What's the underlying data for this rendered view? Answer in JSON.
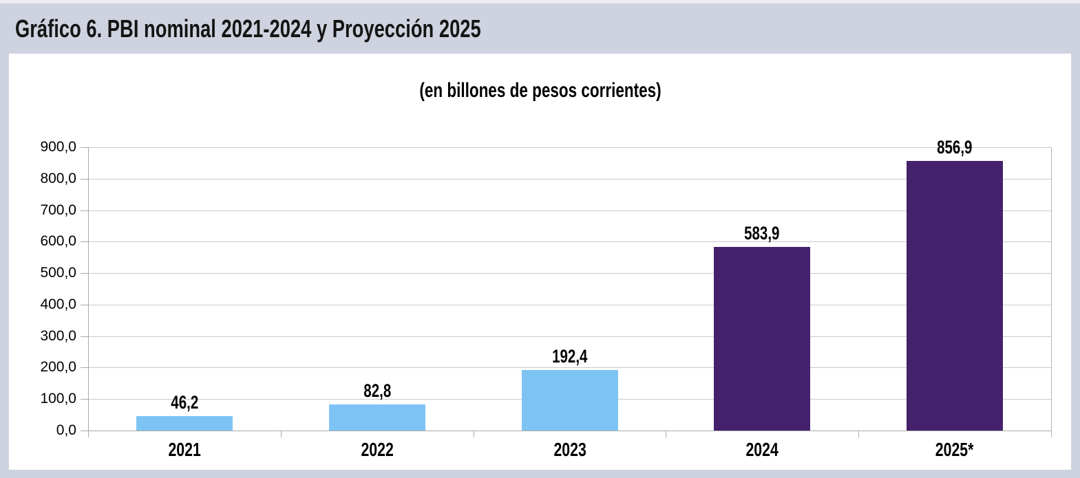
{
  "figure": {
    "title": "Gráfico 6. PBI nominal 2021-2024 y Proyección 2025"
  },
  "chart_data": {
    "type": "bar",
    "title": "Gráfico 6. PBI nominal 2021-2024 y Proyección 2025",
    "subtitle": "(en billones de pesos corrientes)",
    "categories": [
      "2021",
      "2022",
      "2023",
      "2024",
      "2025*"
    ],
    "values": [
      46.2,
      82.8,
      192.4,
      583.9,
      856.9
    ],
    "value_labels": [
      "46,2",
      "82,8",
      "192,4",
      "583,9",
      "856,9"
    ],
    "bar_colors": [
      "#7DC4F5",
      "#7DC4F5",
      "#7DC4F5",
      "#45216B",
      "#45216B"
    ],
    "xlabel": "",
    "ylabel": "",
    "ylim": [
      0,
      900
    ],
    "ytick_step": 100,
    "ytick_labels": [
      "0,0",
      "100,0",
      "200,0",
      "300,0",
      "400,0",
      "500,0",
      "600,0",
      "700,0",
      "800,0",
      "900,0"
    ],
    "grid": true,
    "legend": "none"
  },
  "colors": {
    "background": "#CFD3DF",
    "top_strip": "#EDEEF2",
    "panel": "#FFFFFF",
    "bar_blue": "#7DC4F5",
    "bar_purple": "#45216B",
    "gridline": "#C9C9C9",
    "axis": "#A9A9A9",
    "text": "#000000"
  }
}
